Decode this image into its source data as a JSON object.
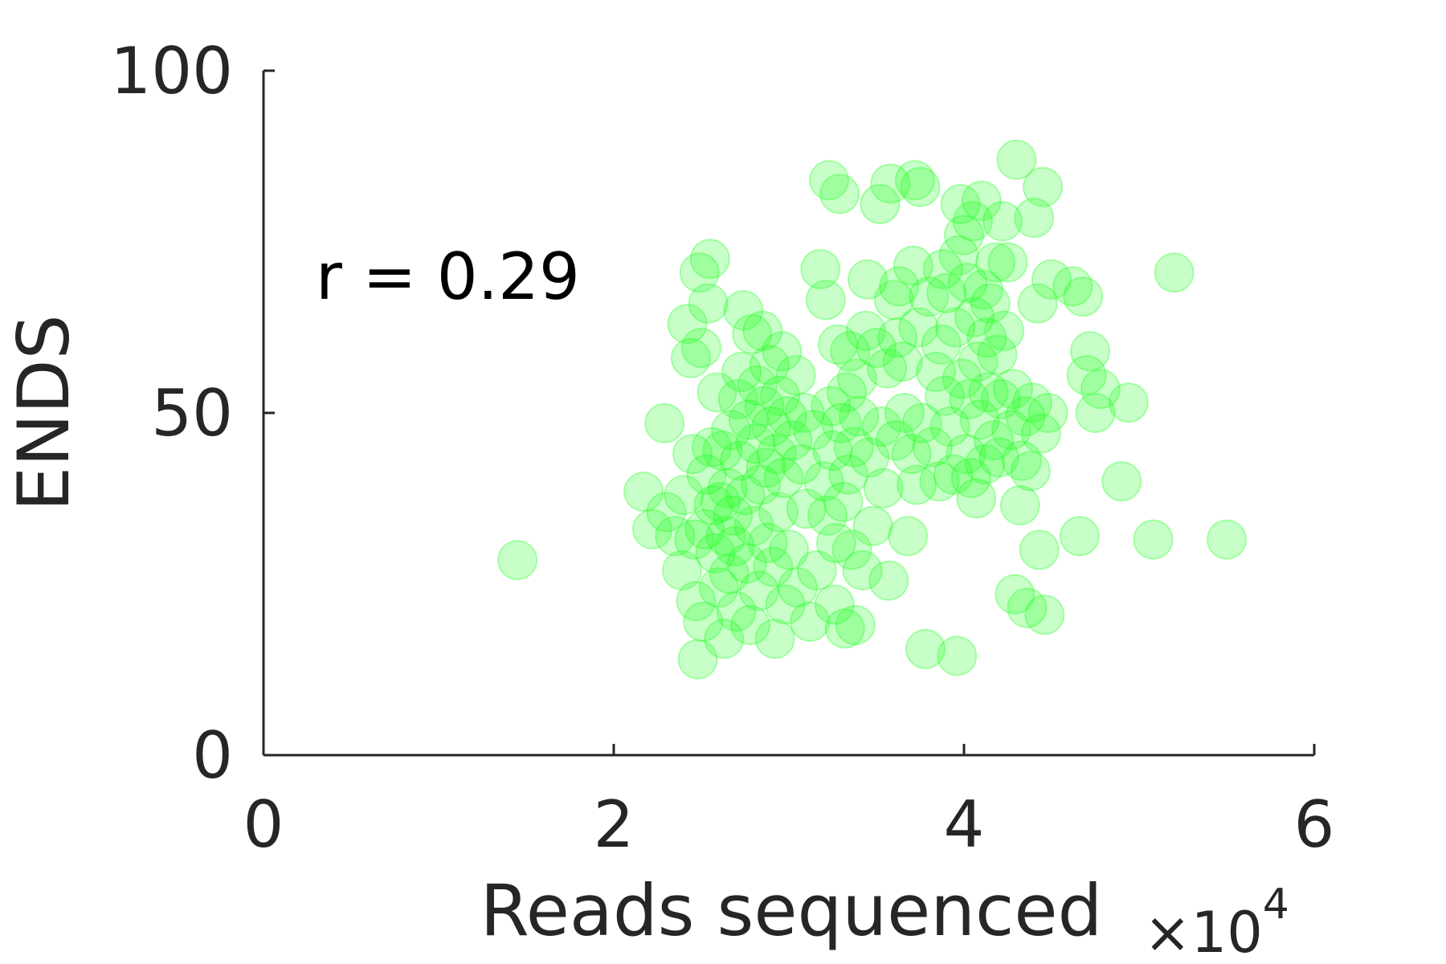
{
  "chart_data": {
    "type": "scatter",
    "title": "",
    "xlabel": "Reads sequenced",
    "x_multiplier_label": "×10",
    "x_multiplier_exponent": "4",
    "ylabel": "ENDS",
    "xlim": [
      0,
      60000
    ],
    "ylim": [
      0,
      100
    ],
    "x_ticks": [
      0,
      20000,
      40000,
      60000
    ],
    "x_tick_labels": [
      "0",
      "2",
      "4",
      "6"
    ],
    "y_ticks": [
      0,
      50,
      100
    ],
    "y_tick_labels": [
      "0",
      "50",
      "100"
    ],
    "annotation": "r = 0.29",
    "grid": false,
    "marker_color": "#22ff22",
    "marker_opacity": 0.25,
    "series": [
      {
        "points": [
          [
            14500,
            28.5
          ],
          [
            21700,
            38.5
          ],
          [
            22200,
            33
          ],
          [
            22900,
            48.5
          ],
          [
            23000,
            35.5
          ],
          [
            23500,
            32
          ],
          [
            23900,
            27
          ],
          [
            24000,
            38
          ],
          [
            24200,
            63
          ],
          [
            24400,
            58
          ],
          [
            24500,
            44
          ],
          [
            24600,
            31.5
          ],
          [
            24700,
            22.5
          ],
          [
            24800,
            14
          ],
          [
            24900,
            70.5
          ],
          [
            25000,
            59.5
          ],
          [
            25100,
            19.5
          ],
          [
            25200,
            33
          ],
          [
            25300,
            41
          ],
          [
            25400,
            66
          ],
          [
            25500,
            72.5
          ],
          [
            25600,
            45
          ],
          [
            25700,
            36.5
          ],
          [
            25800,
            29.5
          ],
          [
            25900,
            53
          ],
          [
            26000,
            24.5
          ],
          [
            26100,
            37
          ],
          [
            26200,
            44.5
          ],
          [
            26300,
            17
          ],
          [
            26400,
            32
          ],
          [
            26500,
            39
          ],
          [
            26600,
            26.5
          ],
          [
            26700,
            47.5
          ],
          [
            26800,
            35
          ],
          [
            26900,
            30.5
          ],
          [
            27000,
            21
          ],
          [
            27100,
            52
          ],
          [
            27200,
            43
          ],
          [
            27300,
            56
          ],
          [
            27400,
            65
          ],
          [
            27500,
            38
          ],
          [
            27600,
            28
          ],
          [
            27700,
            49
          ],
          [
            27800,
            19
          ],
          [
            27900,
            61.5
          ],
          [
            28000,
            33.5
          ],
          [
            28100,
            45.5
          ],
          [
            28200,
            54
          ],
          [
            28300,
            24
          ],
          [
            28400,
            39.5
          ],
          [
            28500,
            62
          ],
          [
            28600,
            51
          ],
          [
            28700,
            42
          ],
          [
            28800,
            31
          ],
          [
            28900,
            57
          ],
          [
            29000,
            48
          ],
          [
            29100,
            27.5
          ],
          [
            29200,
            17
          ],
          [
            29300,
            44
          ],
          [
            29400,
            35.5
          ],
          [
            29500,
            52.5
          ],
          [
            29600,
            59
          ],
          [
            29700,
            40.5
          ],
          [
            29800,
            22
          ],
          [
            29900,
            49.5
          ],
          [
            30000,
            30
          ],
          [
            30200,
            46
          ],
          [
            30400,
            55.5
          ],
          [
            30500,
            24.5
          ],
          [
            30700,
            42.5
          ],
          [
            30900,
            50
          ],
          [
            31000,
            36
          ],
          [
            31200,
            19.5
          ],
          [
            31400,
            47.5
          ],
          [
            31600,
            27
          ],
          [
            31800,
            71
          ],
          [
            32000,
            40
          ],
          [
            32100,
            66.5
          ],
          [
            32200,
            35
          ],
          [
            32300,
            84
          ],
          [
            32400,
            51
          ],
          [
            32500,
            44.5
          ],
          [
            32600,
            22
          ],
          [
            32700,
            31
          ],
          [
            32800,
            60
          ],
          [
            32900,
            82
          ],
          [
            33000,
            48.5
          ],
          [
            33100,
            37
          ],
          [
            33200,
            18.5
          ],
          [
            33300,
            53
          ],
          [
            33400,
            41
          ],
          [
            33500,
            59
          ],
          [
            33600,
            30
          ],
          [
            33700,
            45
          ],
          [
            33800,
            19
          ],
          [
            33900,
            55
          ],
          [
            34000,
            49.5
          ],
          [
            34200,
            27
          ],
          [
            34400,
            62
          ],
          [
            34500,
            69.5
          ],
          [
            34600,
            43.5
          ],
          [
            34800,
            33.5
          ],
          [
            35000,
            59.5
          ],
          [
            35200,
            80.5
          ],
          [
            35300,
            48
          ],
          [
            35400,
            39
          ],
          [
            35600,
            56.5
          ],
          [
            35700,
            25.5
          ],
          [
            35800,
            83.5
          ],
          [
            36000,
            66.5
          ],
          [
            36100,
            46
          ],
          [
            36200,
            61
          ],
          [
            36300,
            68.5
          ],
          [
            36500,
            57.5
          ],
          [
            36600,
            50
          ],
          [
            36800,
            32
          ],
          [
            37000,
            44
          ],
          [
            37100,
            71.5
          ],
          [
            37200,
            84
          ],
          [
            37300,
            39.5
          ],
          [
            37400,
            62.5
          ],
          [
            37500,
            83
          ],
          [
            37600,
            48.5
          ],
          [
            37800,
            15.5
          ],
          [
            38000,
            67
          ],
          [
            38200,
            45
          ],
          [
            38400,
            56
          ],
          [
            38600,
            40
          ],
          [
            38700,
            60
          ],
          [
            38800,
            71
          ],
          [
            38900,
            52.5
          ],
          [
            39000,
            67.5
          ],
          [
            39200,
            48
          ],
          [
            39400,
            41
          ],
          [
            39500,
            62.5
          ],
          [
            39600,
            14.5
          ],
          [
            39700,
            73
          ],
          [
            39800,
            80.5
          ],
          [
            39900,
            55
          ],
          [
            40000,
            76
          ],
          [
            40100,
            44
          ],
          [
            40200,
            69
          ],
          [
            40300,
            52
          ],
          [
            40400,
            40.5
          ],
          [
            40500,
            78
          ],
          [
            40600,
            64
          ],
          [
            40700,
            37.5
          ],
          [
            40800,
            57.5
          ],
          [
            40900,
            49
          ],
          [
            41000,
            81
          ],
          [
            41100,
            68
          ],
          [
            41200,
            42.5
          ],
          [
            41300,
            61
          ],
          [
            41400,
            53
          ],
          [
            41500,
            66
          ],
          [
            41700,
            46
          ],
          [
            41800,
            72
          ],
          [
            41900,
            58.5
          ],
          [
            42000,
            43.5
          ],
          [
            42100,
            52
          ],
          [
            42200,
            78
          ],
          [
            42300,
            62
          ],
          [
            42500,
            72
          ],
          [
            42700,
            47.5
          ],
          [
            42800,
            53.5
          ],
          [
            42900,
            23.5
          ],
          [
            43000,
            87
          ],
          [
            43200,
            36.5
          ],
          [
            43300,
            43
          ],
          [
            43500,
            49.5
          ],
          [
            43600,
            21.5
          ],
          [
            43800,
            41.5
          ],
          [
            43900,
            51.5
          ],
          [
            44000,
            78.5
          ],
          [
            44200,
            66
          ],
          [
            44300,
            30
          ],
          [
            44400,
            47
          ],
          [
            44500,
            83
          ],
          [
            44600,
            20.5
          ],
          [
            44800,
            50
          ],
          [
            45000,
            69.5
          ],
          [
            46200,
            68.5
          ],
          [
            46600,
            32
          ],
          [
            46800,
            67
          ],
          [
            47000,
            55.5
          ],
          [
            47200,
            59
          ],
          [
            47500,
            50
          ],
          [
            47800,
            53.5
          ],
          [
            49000,
            40
          ],
          [
            49400,
            51.5
          ],
          [
            50800,
            31.5
          ],
          [
            52000,
            70.5
          ],
          [
            55000,
            31.5
          ]
        ]
      }
    ]
  }
}
